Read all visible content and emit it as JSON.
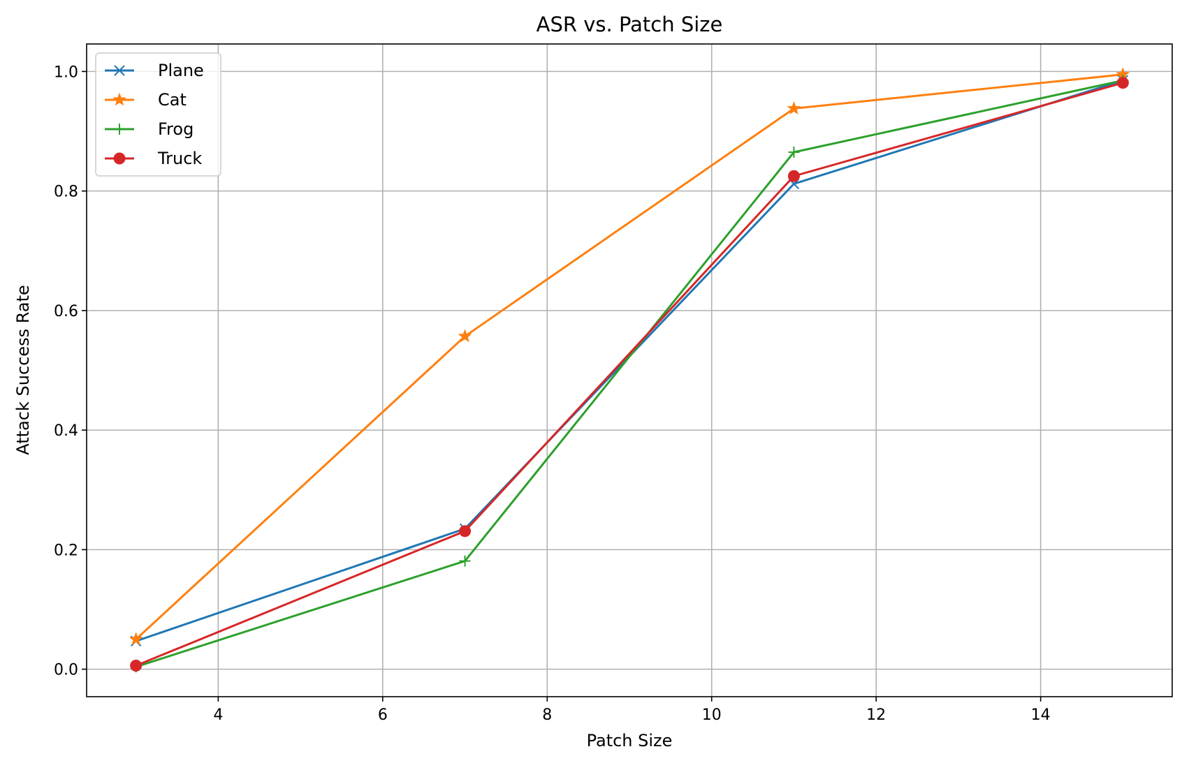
{
  "chart_data": {
    "type": "line",
    "title": "ASR vs. Patch Size",
    "xlabel": "Patch Size",
    "ylabel": "Attack Success Rate",
    "x": [
      3,
      7,
      11,
      15
    ],
    "xlim": [
      2.4,
      15.6
    ],
    "ylim": [
      -0.046,
      1.046
    ],
    "xticks": [
      4,
      6,
      8,
      10,
      12,
      14
    ],
    "xtick_labels": [
      "4",
      "6",
      "8",
      "10",
      "12",
      "14"
    ],
    "yticks": [
      0.0,
      0.2,
      0.4,
      0.6,
      0.8,
      1.0
    ],
    "ytick_labels": [
      "0.0",
      "0.2",
      "0.4",
      "0.6",
      "0.8",
      "1.0"
    ],
    "grid": true,
    "legend_position": "top-left",
    "series": [
      {
        "name": "Plane",
        "marker": "x",
        "color": "#1f77b4",
        "values": [
          0.047,
          0.235,
          0.812,
          0.985
        ]
      },
      {
        "name": "Cat",
        "marker": "star",
        "color": "#ff7f0e",
        "values": [
          0.05,
          0.557,
          0.938,
          0.995
        ]
      },
      {
        "name": "Frog",
        "marker": "plus",
        "color": "#2ca02c",
        "values": [
          0.004,
          0.181,
          0.865,
          0.985
        ]
      },
      {
        "name": "Truck",
        "marker": "circle",
        "color": "#d62728",
        "values": [
          0.006,
          0.231,
          0.825,
          0.981
        ]
      }
    ]
  }
}
